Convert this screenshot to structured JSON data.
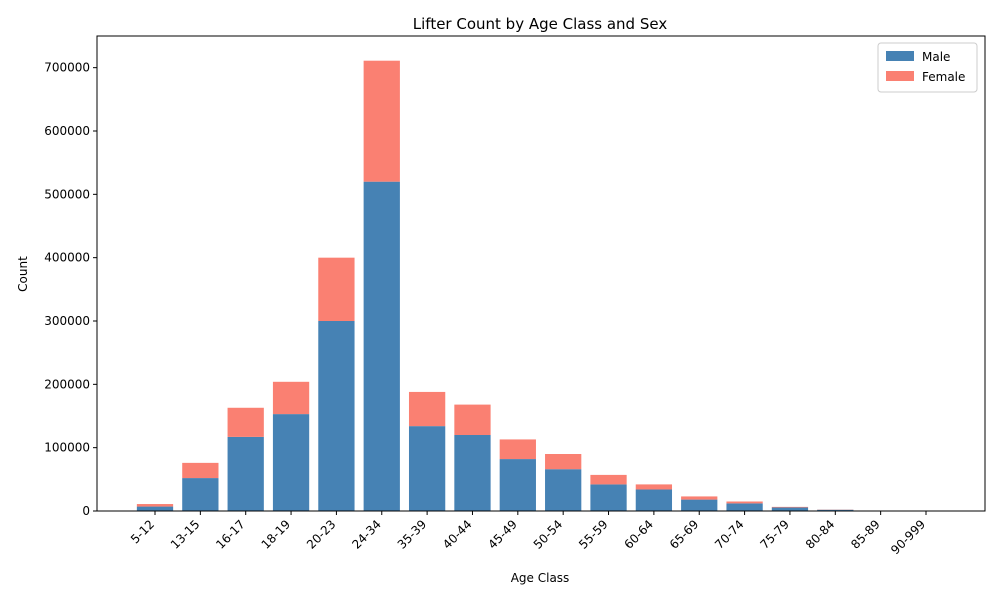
{
  "chart_data": {
    "type": "bar",
    "stacked": true,
    "title": "Lifter Count by Age Class and Sex",
    "xlabel": "Age Class",
    "ylabel": "Count",
    "ylim": [
      0,
      750000
    ],
    "yticks": [
      0,
      100000,
      200000,
      300000,
      400000,
      500000,
      600000,
      700000
    ],
    "ytick_labels": [
      "0",
      "100000",
      "200000",
      "300000",
      "400000",
      "500000",
      "600000",
      "700000"
    ],
    "legend_position": "top-right",
    "grid": false,
    "categories": [
      "5-12",
      "13-15",
      "16-17",
      "18-19",
      "20-23",
      "24-34",
      "35-39",
      "40-44",
      "45-49",
      "50-54",
      "55-59",
      "60-64",
      "65-69",
      "70-74",
      "75-79",
      "80-84",
      "85-89",
      "90-999"
    ],
    "series": [
      {
        "name": "Male",
        "color": "#4682b4",
        "values": [
          7000,
          52000,
          117000,
          153000,
          300000,
          520000,
          134000,
          120000,
          82000,
          66000,
          42000,
          34000,
          18000,
          12000,
          5500,
          2000,
          500,
          100
        ]
      },
      {
        "name": "Female",
        "color": "#fa8072",
        "values": [
          4000,
          24000,
          46000,
          51000,
          100000,
          191000,
          54000,
          48000,
          31000,
          24000,
          15000,
          8000,
          5000,
          3000,
          1000,
          300,
          100,
          20
        ]
      }
    ]
  }
}
